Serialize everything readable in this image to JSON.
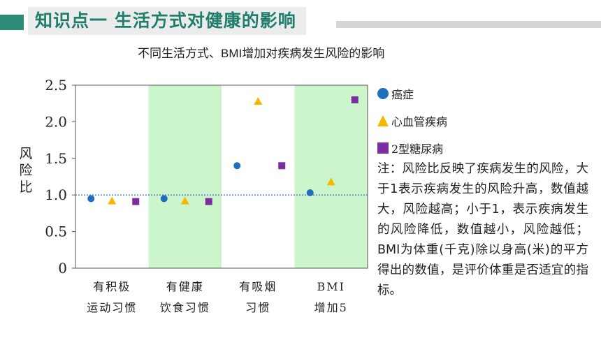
{
  "header": {
    "title": "知识点一  生活方式对健康的影响"
  },
  "chart_data": {
    "type": "scatter",
    "title": "不同生活方式、BMI增加对疾病发生风险的影响",
    "ylabel": "风险比",
    "xlabel": "",
    "ylim": [
      0,
      2.5
    ],
    "yticks": [
      "0",
      "0.5",
      "1.0",
      "1.5",
      "2.0",
      "2.5"
    ],
    "ytick_values": [
      0,
      0.5,
      1.0,
      1.5,
      2.0,
      2.5
    ],
    "reference_line": 1.0,
    "categories": [
      "有积极\n运动习惯",
      "有健康\n饮食习惯",
      "有吸烟\n习惯",
      "BMI\n增加5"
    ],
    "shaded_categories": [
      1,
      3
    ],
    "series": [
      {
        "name": "癌症",
        "marker": "circle",
        "color": "#1f6fbf",
        "values": [
          0.95,
          0.95,
          1.4,
          1.03
        ]
      },
      {
        "name": "心血管疾病",
        "marker": "triangle",
        "color": "#f5b800",
        "values": [
          0.92,
          0.92,
          2.28,
          1.18
        ]
      },
      {
        "name": "2型糖尿病",
        "marker": "square",
        "color": "#7a2fa0",
        "values": [
          0.91,
          0.91,
          1.4,
          2.3
        ]
      }
    ],
    "legend_position": "right"
  },
  "note": "注：风险比反映了疾病发生的风险，大于1表示疾病发生的风险升高，数值越大，风险越高；小于1，表示疾病发生的风险降低，数值越小，风险越低；BMI为体重(千克)除以身高(米)的平方得出的数值，是评价体重是否适宜的指标。",
  "colors": {
    "accent": "#2e8a78",
    "title_text": "#1f7f6c",
    "shade": "#ccf5cc",
    "reference_line": "#3a6fc4"
  }
}
